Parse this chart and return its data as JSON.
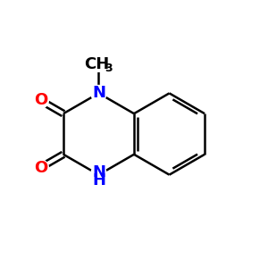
{
  "bg_color": "#ffffff",
  "bond_color": "#000000",
  "N_color": "#0000ff",
  "O_color": "#ff0000",
  "CH3_color": "#000000",
  "line_width": 1.8,
  "figsize": [
    3.0,
    3.0
  ],
  "dpi": 100,
  "xlim": [
    0,
    10
  ],
  "ylim": [
    0,
    10
  ]
}
